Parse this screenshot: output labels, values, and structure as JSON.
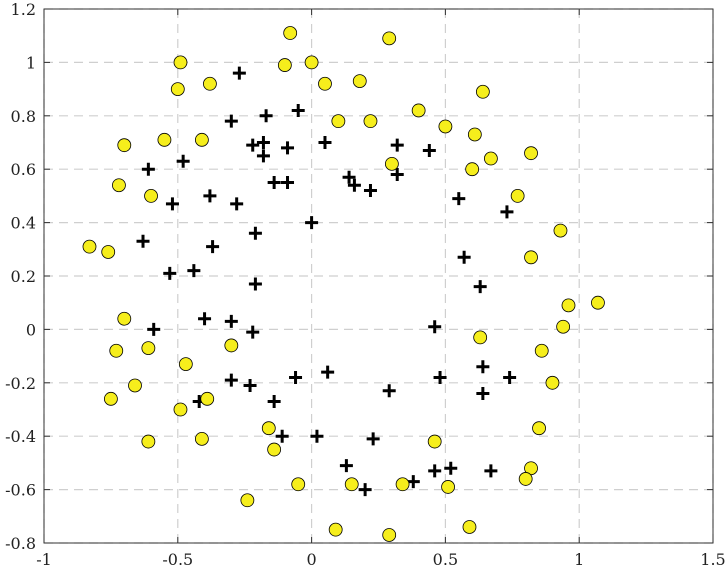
{
  "chart_data": {
    "type": "scatter",
    "title": "",
    "xlabel": "",
    "ylabel": "",
    "xlim": [
      -1,
      1.5
    ],
    "ylim": [
      -0.8,
      1.2
    ],
    "grid": true,
    "x_ticks": [
      -1,
      -0.5,
      0,
      0.5,
      1,
      1.5
    ],
    "x_tick_labels": [
      "-1",
      "-0.5",
      "0",
      "0.5",
      "1",
      "1.5"
    ],
    "y_ticks": [
      -0.8,
      -0.6,
      -0.4,
      -0.2,
      0,
      0.2,
      0.4,
      0.6,
      0.8,
      1,
      1.2
    ],
    "y_tick_labels": [
      "-0.8",
      "-0.6",
      "-0.4",
      "-0.2",
      "0",
      "0.2",
      "0.4",
      "0.6",
      "0.8",
      "1",
      "1.2"
    ],
    "series": [
      {
        "marker": "plus",
        "color": "#000000",
        "points": [
          [
            -0.27,
            0.96
          ],
          [
            -0.17,
            0.8
          ],
          [
            -0.05,
            0.82
          ],
          [
            -0.3,
            0.78
          ],
          [
            -0.22,
            0.69
          ],
          [
            -0.18,
            0.7
          ],
          [
            -0.09,
            0.68
          ],
          [
            0.05,
            0.7
          ],
          [
            -0.18,
            0.65
          ],
          [
            -0.48,
            0.63
          ],
          [
            -0.61,
            0.6
          ],
          [
            -0.14,
            0.55
          ],
          [
            -0.09,
            0.55
          ],
          [
            -0.38,
            0.5
          ],
          [
            -0.52,
            0.47
          ],
          [
            -0.28,
            0.47
          ],
          [
            0.14,
            0.57
          ],
          [
            0.16,
            0.54
          ],
          [
            0.22,
            0.52
          ],
          [
            0.32,
            0.69
          ],
          [
            0.44,
            0.67
          ],
          [
            0.32,
            0.58
          ],
          [
            0.55,
            0.49
          ],
          [
            0.73,
            0.44
          ],
          [
            -0.63,
            0.33
          ],
          [
            -0.37,
            0.31
          ],
          [
            -0.21,
            0.36
          ],
          [
            0.0,
            0.4
          ],
          [
            -0.53,
            0.21
          ],
          [
            -0.44,
            0.22
          ],
          [
            -0.21,
            0.17
          ],
          [
            0.57,
            0.27
          ],
          [
            0.63,
            0.16
          ],
          [
            -0.59,
            0.0
          ],
          [
            -0.4,
            0.04
          ],
          [
            -0.3,
            0.03
          ],
          [
            -0.22,
            -0.01
          ],
          [
            0.46,
            0.01
          ],
          [
            -0.3,
            -0.19
          ],
          [
            -0.23,
            -0.21
          ],
          [
            -0.06,
            -0.18
          ],
          [
            0.06,
            -0.16
          ],
          [
            0.29,
            -0.23
          ],
          [
            0.48,
            -0.18
          ],
          [
            0.64,
            -0.14
          ],
          [
            0.74,
            -0.18
          ],
          [
            0.64,
            -0.24
          ],
          [
            -0.42,
            -0.27
          ],
          [
            -0.14,
            -0.27
          ],
          [
            -0.11,
            -0.4
          ],
          [
            0.02,
            -0.4
          ],
          [
            0.23,
            -0.41
          ],
          [
            0.13,
            -0.51
          ],
          [
            0.2,
            -0.6
          ],
          [
            0.38,
            -0.57
          ],
          [
            0.46,
            -0.53
          ],
          [
            0.52,
            -0.52
          ],
          [
            0.67,
            -0.53
          ]
        ]
      },
      {
        "marker": "circle",
        "color": "#f6ee1c",
        "points": [
          [
            -0.08,
            1.11
          ],
          [
            0.29,
            1.09
          ],
          [
            -0.49,
            1.0
          ],
          [
            -0.1,
            0.99
          ],
          [
            0.0,
            1.0
          ],
          [
            -0.5,
            0.9
          ],
          [
            -0.38,
            0.92
          ],
          [
            0.05,
            0.92
          ],
          [
            0.18,
            0.93
          ],
          [
            0.64,
            0.89
          ],
          [
            0.4,
            0.82
          ],
          [
            0.1,
            0.78
          ],
          [
            0.22,
            0.78
          ],
          [
            0.5,
            0.76
          ],
          [
            0.61,
            0.73
          ],
          [
            -0.7,
            0.69
          ],
          [
            -0.55,
            0.71
          ],
          [
            -0.41,
            0.71
          ],
          [
            0.67,
            0.64
          ],
          [
            0.82,
            0.66
          ],
          [
            0.3,
            0.62
          ],
          [
            0.6,
            0.6
          ],
          [
            -0.72,
            0.54
          ],
          [
            -0.6,
            0.5
          ],
          [
            0.77,
            0.5
          ],
          [
            0.93,
            0.37
          ],
          [
            -0.83,
            0.31
          ],
          [
            -0.76,
            0.29
          ],
          [
            0.82,
            0.27
          ],
          [
            1.07,
            0.1
          ],
          [
            0.96,
            0.09
          ],
          [
            -0.7,
            0.04
          ],
          [
            0.94,
            0.01
          ],
          [
            0.63,
            -0.03
          ],
          [
            -0.73,
            -0.08
          ],
          [
            -0.61,
            -0.07
          ],
          [
            -0.3,
            -0.06
          ],
          [
            0.86,
            -0.08
          ],
          [
            -0.47,
            -0.13
          ],
          [
            -0.66,
            -0.21
          ],
          [
            -0.75,
            -0.26
          ],
          [
            -0.39,
            -0.26
          ],
          [
            -0.49,
            -0.3
          ],
          [
            0.9,
            -0.2
          ],
          [
            -0.16,
            -0.37
          ],
          [
            -0.61,
            -0.42
          ],
          [
            -0.41,
            -0.41
          ],
          [
            -0.14,
            -0.45
          ],
          [
            0.46,
            -0.42
          ],
          [
            0.85,
            -0.37
          ],
          [
            0.82,
            -0.52
          ],
          [
            0.8,
            -0.56
          ],
          [
            -0.05,
            -0.58
          ],
          [
            0.15,
            -0.58
          ],
          [
            0.34,
            -0.58
          ],
          [
            0.51,
            -0.59
          ],
          [
            -0.24,
            -0.64
          ],
          [
            0.59,
            -0.74
          ],
          [
            0.09,
            -0.75
          ],
          [
            0.29,
            -0.77
          ]
        ]
      }
    ]
  }
}
